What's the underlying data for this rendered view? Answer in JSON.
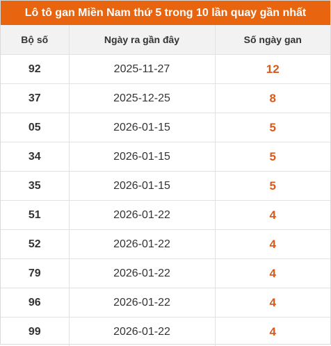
{
  "title": "Lô tô gan Miền Nam thứ 5 trong 10 lần quay gần nhất",
  "colors": {
    "title_bg": "#e8640f",
    "gan_value": "#d9591a"
  },
  "table": {
    "headers": [
      "Bộ số",
      "Ngày ra gần đây",
      "Số ngày gan"
    ],
    "rows": [
      {
        "number": "92",
        "date": "2025-11-27",
        "days": "12"
      },
      {
        "number": "37",
        "date": "2025-12-25",
        "days": "8"
      },
      {
        "number": "05",
        "date": "2026-01-15",
        "days": "5"
      },
      {
        "number": "34",
        "date": "2026-01-15",
        "days": "5"
      },
      {
        "number": "35",
        "date": "2026-01-15",
        "days": "5"
      },
      {
        "number": "51",
        "date": "2026-01-22",
        "days": "4"
      },
      {
        "number": "52",
        "date": "2026-01-22",
        "days": "4"
      },
      {
        "number": "79",
        "date": "2026-01-22",
        "days": "4"
      },
      {
        "number": "96",
        "date": "2026-01-22",
        "days": "4"
      },
      {
        "number": "99",
        "date": "2026-01-22",
        "days": "4"
      }
    ]
  }
}
